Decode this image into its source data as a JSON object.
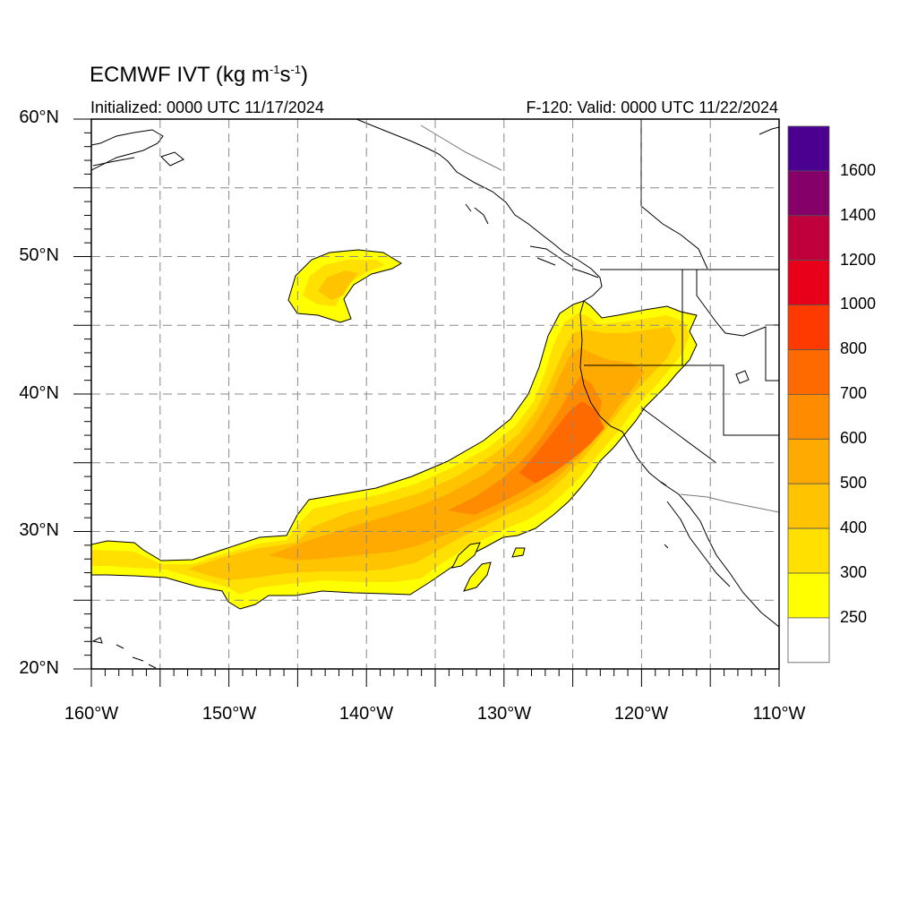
{
  "header": {
    "title_main": "ECMWF IVT (kg m",
    "title_sup1": "-1",
    "title_mid": "s",
    "title_sup2": "-1",
    "title_end": ")",
    "initialized": "Initialized: 0000 UTC 11/17/2024",
    "valid": "F-120: Valid: 0000 UTC 11/22/2024"
  },
  "axes": {
    "lat_labels": [
      "60°N",
      "50°N",
      "40°N",
      "30°N",
      "20°N"
    ],
    "lon_labels": [
      "160°W",
      "150°W",
      "140°W",
      "130°W",
      "120°W",
      "110°W"
    ],
    "lat_range": [
      20,
      60
    ],
    "lon_range": [
      -160,
      -110
    ],
    "grid": true
  },
  "colorbar": {
    "labels": [
      "1600",
      "1400",
      "1200",
      "1000",
      "800",
      "700",
      "600",
      "500",
      "400",
      "300",
      "250"
    ],
    "colors": [
      "#4b0090",
      "#850068",
      "#c0003c",
      "#e8001a",
      "#ff3a00",
      "#ff6a00",
      "#ff8c00",
      "#ffaa00",
      "#ffc300",
      "#ffe000",
      "#ffff00",
      "#ffffff"
    ]
  },
  "chart_data": {
    "type": "map",
    "variable": "IVT",
    "units": "kg m-1 s-1",
    "levels": [
      250,
      300,
      400,
      500,
      600,
      700,
      800,
      1000,
      1200,
      1400,
      1600
    ]
  }
}
